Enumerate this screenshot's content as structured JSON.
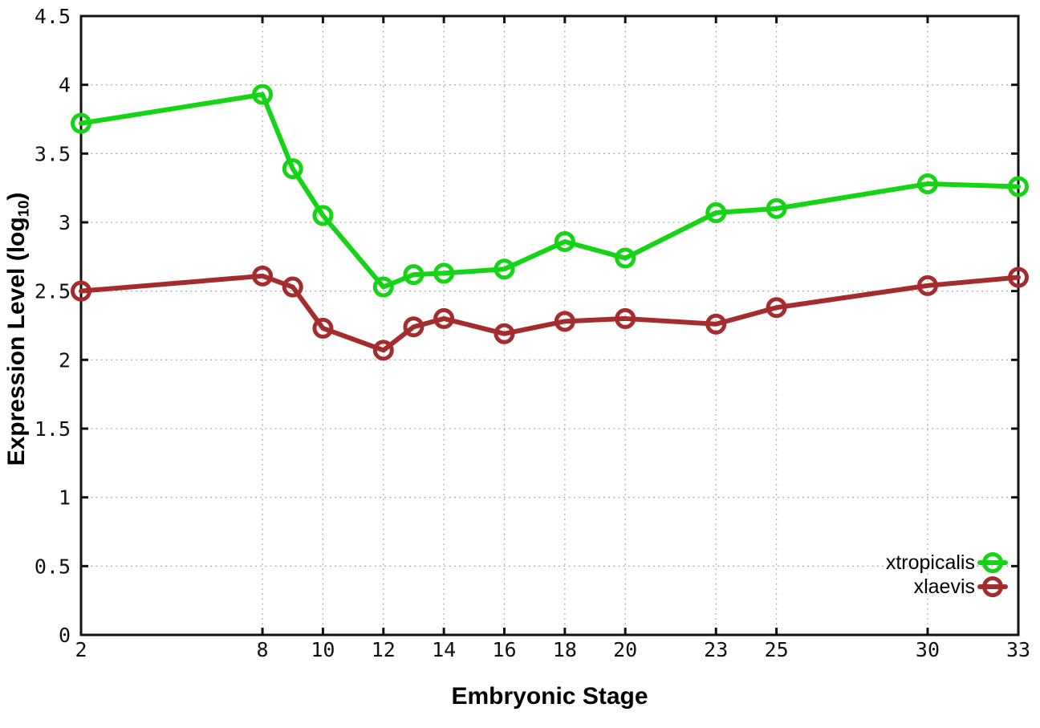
{
  "page": {
    "background": "#ffffff"
  },
  "chart_data": {
    "type": "line",
    "title": "",
    "xlabel": "Embryonic Stage",
    "ylabel": "Expression Level (log10)",
    "ylabel_parts": {
      "prefix": "Expression Level (log",
      "sub": "10",
      "suffix": ")"
    },
    "xlim": [
      2,
      33
    ],
    "ylim": [
      0,
      4.5
    ],
    "xticks": [
      2,
      8,
      10,
      12,
      14,
      16,
      18,
      20,
      23,
      25,
      30,
      33
    ],
    "yticks": [
      0,
      0.5,
      1,
      1.5,
      2,
      2.5,
      3,
      3.5,
      4,
      4.5
    ],
    "ytick_labels": [
      "0",
      "0.5",
      "1",
      "1.5",
      "2",
      "2.5",
      "3",
      "3.5",
      "4",
      "4.5"
    ],
    "grid": true,
    "legend_position": "bottom-right-inside",
    "x": [
      2,
      8,
      9,
      10,
      12,
      13,
      14,
      16,
      18,
      20,
      23,
      25,
      30,
      33
    ],
    "series": [
      {
        "name": "xtropicalis",
        "color": "#15d415",
        "marker": "open-circle",
        "values": [
          3.72,
          3.93,
          3.39,
          3.05,
          2.53,
          2.62,
          2.63,
          2.66,
          2.86,
          2.74,
          3.07,
          3.1,
          3.28,
          3.26
        ]
      },
      {
        "name": "xlaevis",
        "color": "#a42c2c",
        "marker": "open-circle",
        "values": [
          2.5,
          2.61,
          2.53,
          2.23,
          2.07,
          2.24,
          2.3,
          2.19,
          2.28,
          2.3,
          2.26,
          2.38,
          2.54,
          2.6
        ]
      }
    ],
    "colors": {
      "border": "#111111",
      "grid": "#a8a8a8",
      "text": "#000000"
    }
  }
}
